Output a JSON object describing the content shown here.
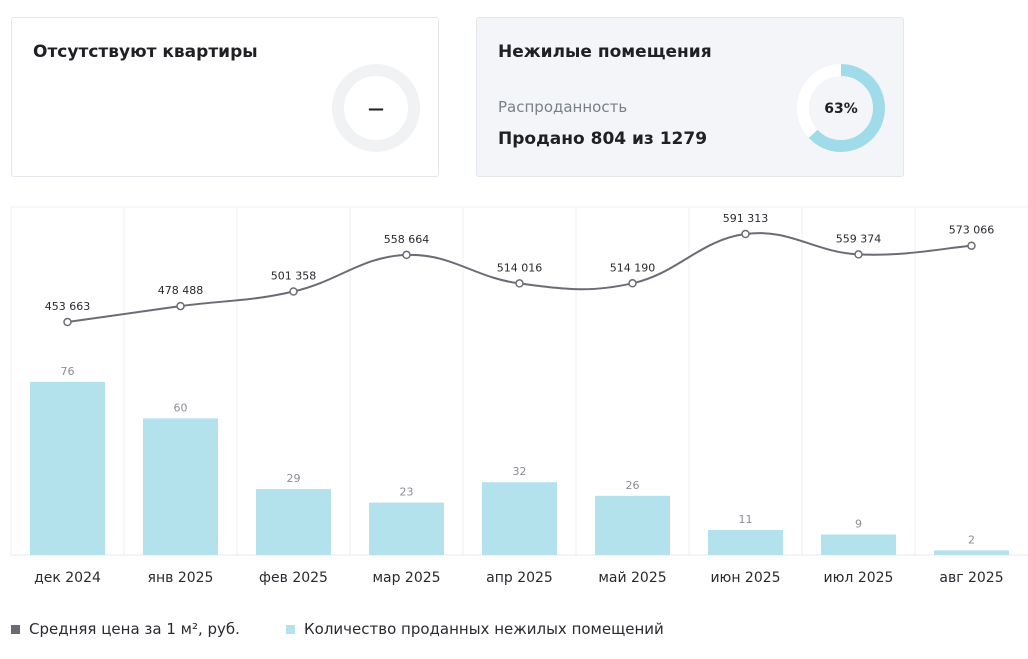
{
  "cards": {
    "empty": {
      "title": "Отсутствуют квартиры",
      "value": "—"
    },
    "commercial": {
      "title": "Нежилые помещения",
      "subtitle": "Распроданность",
      "sold_text": "Продано 804 из 1279",
      "percent_label": "63%",
      "percent": 63
    }
  },
  "colors": {
    "bar": "#b3e2ec",
    "line": "#6b6b75",
    "donut_fill": "#9fdbe8",
    "donut_track": "#f0f2f4"
  },
  "chart_data": {
    "type": "bar+line",
    "categories": [
      "дек 2024",
      "янв 2025",
      "фев 2025",
      "мар 2025",
      "апр 2025",
      "май 2025",
      "июн 2025",
      "июл 2025",
      "авг 2025"
    ],
    "series": [
      {
        "name": "Количество проданных нежилых помещений",
        "type": "bar",
        "values": [
          76,
          60,
          29,
          23,
          32,
          26,
          11,
          9,
          2
        ],
        "labels": [
          "76",
          "60",
          "29",
          "23",
          "32",
          "26",
          "11",
          "9",
          "2"
        ]
      },
      {
        "name": "Средняя цена за 1 м², руб.",
        "type": "line",
        "values": [
          453663,
          478488,
          501358,
          558664,
          514016,
          514190,
          591313,
          559374,
          573066
        ],
        "labels": [
          "453 663",
          "478 488",
          "501 358",
          "558 664",
          "514 016",
          "514 190",
          "591 313",
          "559 374",
          "573 066"
        ]
      }
    ],
    "legend_position": "bottom-left",
    "grid": "vertical"
  },
  "legend": {
    "line_label": "Средняя цена за 1 м², руб.",
    "bar_label": "Количество проданных нежилых помещений"
  }
}
